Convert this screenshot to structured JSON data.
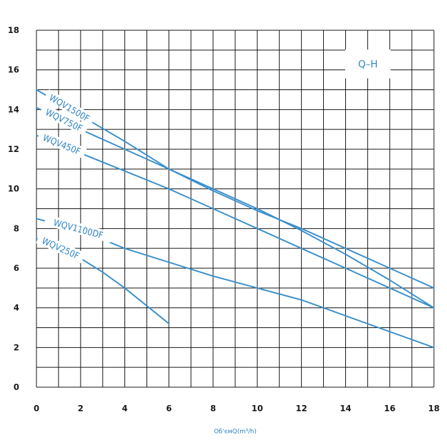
{
  "chart_data": {
    "type": "line",
    "xlabel": "Об'ємQ(m³/h)",
    "ylabel": "",
    "xlim": [
      0,
      18
    ],
    "ylim": [
      0,
      18
    ],
    "xticks": [
      0,
      2,
      4,
      6,
      8,
      10,
      12,
      14,
      16,
      18
    ],
    "yticks": [
      0,
      2,
      4,
      6,
      8,
      10,
      12,
      14,
      16,
      18
    ],
    "grid": true,
    "line_color": "#3a8fcc",
    "legend_box": "Q–H",
    "series": [
      {
        "name": "WQV1500F",
        "x": [
          0,
          2,
          4,
          6,
          8,
          10,
          12,
          14,
          16,
          18
        ],
        "y": [
          15.0,
          13.7,
          12.4,
          11.0,
          9.9,
          8.9,
          8.0,
          7.0,
          6.0,
          5.0
        ]
      },
      {
        "name": "WQV750F",
        "x": [
          0,
          2,
          4,
          6,
          8,
          10,
          12,
          14,
          16,
          18
        ],
        "y": [
          14.1,
          13.0,
          12.0,
          11.0,
          10.0,
          9.0,
          7.9,
          6.7,
          5.4,
          4.0
        ]
      },
      {
        "name": "WQV450F",
        "x": [
          0,
          2,
          4,
          6,
          8,
          10,
          12,
          14,
          16,
          18
        ],
        "y": [
          12.7,
          11.8,
          10.9,
          10.0,
          9.0,
          8.0,
          7.0,
          6.0,
          5.0,
          4.0
        ]
      },
      {
        "name": "WQV1100DF",
        "x": [
          0,
          2,
          4,
          6,
          8,
          10,
          12,
          14,
          16,
          18
        ],
        "y": [
          8.5,
          7.9,
          7.0,
          6.3,
          5.6,
          5.0,
          4.4,
          3.6,
          2.8,
          2.0
        ]
      },
      {
        "name": "WQV250F",
        "x": [
          0,
          1,
          2,
          3,
          4,
          5,
          6
        ],
        "y": [
          7.5,
          7.0,
          6.5,
          5.8,
          5.0,
          4.1,
          3.2
        ]
      }
    ]
  }
}
